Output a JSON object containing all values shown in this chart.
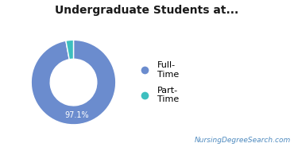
{
  "title": "Undergraduate Students at...",
  "slices": [
    97.1,
    2.9
  ],
  "colors": [
    "#6b8cce",
    "#3dbfbf"
  ],
  "legend_labels": [
    "Full-\nTime",
    "Part-\nTime"
  ],
  "label_text": "97.1%",
  "label_color": "#ffffff",
  "background_color": "#ffffff",
  "watermark": "NursingDegreeSearch.com",
  "watermark_color": "#4e8abf",
  "title_fontsize": 10,
  "label_fontsize": 7,
  "legend_fontsize": 8,
  "watermark_fontsize": 6.5,
  "donut_width": 0.45
}
